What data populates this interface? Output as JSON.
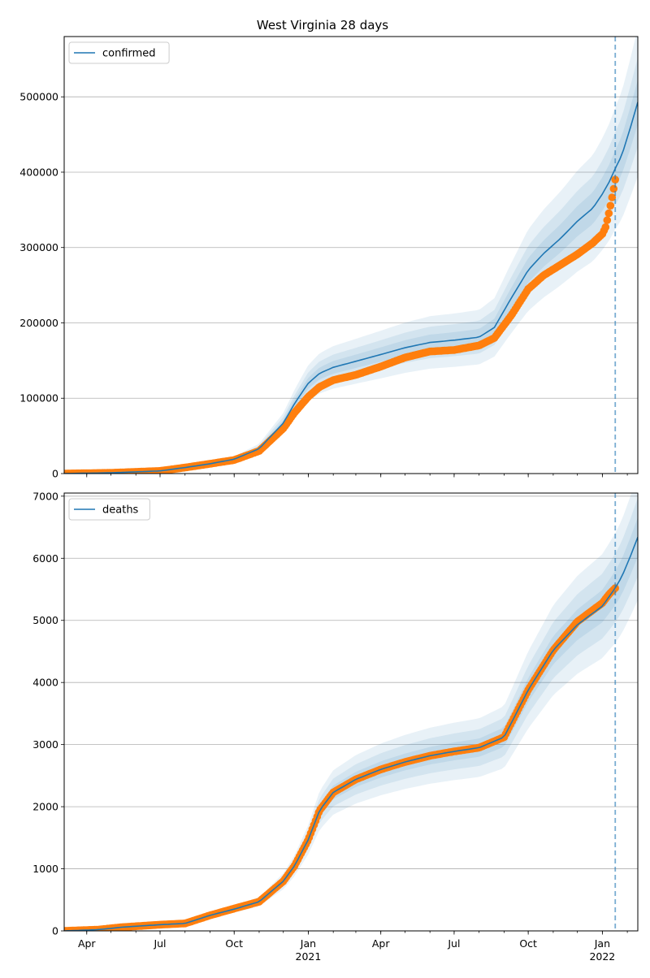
{
  "title": "West Virginia 28 days",
  "colors": {
    "model_line": "#1f77b4",
    "band": "#1f77b4",
    "observed": "#ff7f0e",
    "today_line": "#1f77b4",
    "grid": "#b0b0b0"
  },
  "x_ticks": [
    {
      "date": "2020-04-01",
      "label": "Apr",
      "sub": ""
    },
    {
      "date": "2020-07-01",
      "label": "Jul",
      "sub": ""
    },
    {
      "date": "2020-10-01",
      "label": "Oct",
      "sub": ""
    },
    {
      "date": "2021-01-01",
      "label": "Jan",
      "sub": "2021"
    },
    {
      "date": "2021-04-01",
      "label": "Apr",
      "sub": ""
    },
    {
      "date": "2021-07-01",
      "label": "Jul",
      "sub": ""
    },
    {
      "date": "2021-10-01",
      "label": "Oct",
      "sub": ""
    },
    {
      "date": "2022-01-01",
      "label": "Jan",
      "sub": "2022"
    }
  ],
  "chart_data": [
    {
      "type": "line",
      "name": "confirmed",
      "legend": "confirmed",
      "legend_position": "top-left",
      "grid": "y",
      "xlim": [
        "2020-03-04",
        "2022-02-14"
      ],
      "ylim": [
        0,
        580000
      ],
      "yticks": [
        0,
        100000,
        200000,
        300000,
        400000,
        500000
      ],
      "today": "2022-01-17",
      "model": {
        "x": [
          "2020-03-04",
          "2020-05-01",
          "2020-07-01",
          "2020-08-01",
          "2020-09-01",
          "2020-10-01",
          "2020-11-01",
          "2020-12-01",
          "2020-12-15",
          "2021-01-01",
          "2021-01-15",
          "2021-02-01",
          "2021-03-01",
          "2021-04-01",
          "2021-05-01",
          "2021-06-01",
          "2021-07-01",
          "2021-08-01",
          "2021-08-20",
          "2021-09-10",
          "2021-10-01",
          "2021-10-20",
          "2021-11-10",
          "2021-12-01",
          "2021-12-20",
          "2022-01-01",
          "2022-01-10",
          "2022-01-17",
          "2022-01-25",
          "2022-02-05",
          "2022-02-14"
        ],
        "y": [
          0,
          1000,
          3500,
          8000,
          13000,
          19000,
          33000,
          67000,
          93000,
          120000,
          133000,
          141000,
          149000,
          158000,
          167000,
          174000,
          177000,
          181000,
          194000,
          233000,
          270000,
          292000,
          312000,
          335000,
          352000,
          371000,
          388000,
          405000,
          422000,
          460000,
          493000
        ]
      },
      "band_spreads": [
        0.06,
        0.12,
        0.2
      ],
      "observed": {
        "x": [
          "2020-03-04",
          "2020-05-01",
          "2020-07-01",
          "2020-08-01",
          "2020-09-01",
          "2020-10-01",
          "2020-11-01",
          "2020-12-01",
          "2020-12-15",
          "2021-01-01",
          "2021-01-15",
          "2021-02-01",
          "2021-03-01",
          "2021-04-01",
          "2021-05-01",
          "2021-06-01",
          "2021-07-01",
          "2021-08-01",
          "2021-08-20",
          "2021-09-10",
          "2021-10-01",
          "2021-10-20",
          "2021-11-10",
          "2021-12-01",
          "2021-12-20",
          "2022-01-01",
          "2022-01-05",
          "2022-01-10",
          "2022-01-14",
          "2022-01-17"
        ],
        "y": [
          0,
          1000,
          3500,
          8000,
          13000,
          18000,
          30000,
          60000,
          81000,
          102000,
          115000,
          124000,
          131000,
          142000,
          154000,
          162000,
          164000,
          170000,
          180000,
          210000,
          245000,
          263000,
          277000,
          291000,
          306000,
          318000,
          327000,
          350000,
          372000,
          390000
        ]
      }
    },
    {
      "type": "line",
      "name": "deaths",
      "legend": "deaths",
      "legend_position": "top-left",
      "grid": "y",
      "xlim": [
        "2020-03-04",
        "2022-02-14"
      ],
      "ylim": [
        0,
        7050
      ],
      "yticks": [
        0,
        1000,
        2000,
        3000,
        4000,
        5000,
        6000,
        7000
      ],
      "today": "2022-01-17",
      "model": {
        "x": [
          "2020-03-04",
          "2020-04-15",
          "2020-05-15",
          "2020-07-01",
          "2020-08-01",
          "2020-09-01",
          "2020-10-01",
          "2020-11-01",
          "2020-12-01",
          "2020-12-15",
          "2021-01-01",
          "2021-01-15",
          "2021-02-01",
          "2021-03-01",
          "2021-04-01",
          "2021-05-01",
          "2021-06-01",
          "2021-07-01",
          "2021-08-01",
          "2021-09-01",
          "2021-10-01",
          "2021-11-01",
          "2021-12-01",
          "2022-01-01",
          "2022-01-17",
          "2022-01-25",
          "2022-02-05",
          "2022-02-14"
        ],
        "y": [
          0,
          20,
          60,
          100,
          120,
          250,
          350,
          470,
          800,
          1050,
          1470,
          1940,
          2230,
          2440,
          2600,
          2720,
          2820,
          2890,
          2950,
          3120,
          3880,
          4520,
          4930,
          5230,
          5520,
          5700,
          6040,
          6340
        ]
      },
      "band_spreads": [
        0.05,
        0.1,
        0.16
      ],
      "observed": {
        "x": [
          "2020-03-04",
          "2020-04-15",
          "2020-05-15",
          "2020-07-01",
          "2020-08-01",
          "2020-09-01",
          "2020-10-01",
          "2020-11-01",
          "2020-12-01",
          "2020-12-15",
          "2021-01-01",
          "2021-01-15",
          "2021-02-01",
          "2021-03-01",
          "2021-04-01",
          "2021-05-01",
          "2021-06-01",
          "2021-07-01",
          "2021-08-01",
          "2021-09-01",
          "2021-10-01",
          "2021-11-01",
          "2021-12-01",
          "2022-01-01",
          "2022-01-10",
          "2022-01-17"
        ],
        "y": [
          0,
          20,
          60,
          100,
          120,
          250,
          360,
          470,
          800,
          1050,
          1470,
          1940,
          2230,
          2440,
          2600,
          2720,
          2820,
          2890,
          2950,
          3120,
          3880,
          4520,
          4980,
          5280,
          5430,
          5520
        ]
      }
    }
  ]
}
